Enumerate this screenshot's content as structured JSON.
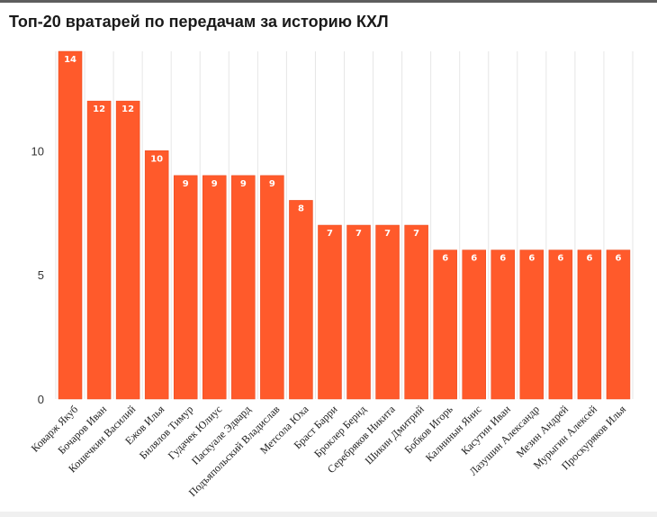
{
  "title": "Топ-20 вратарей по передачам за историю КХЛ",
  "colors": {
    "bar": "#ff5a2b",
    "bar_edge": "#e8461a",
    "grid": "#e6e6e6"
  },
  "chart_data": {
    "type": "bar",
    "title": "Топ-20 вратарей по передачам за историю КХЛ",
    "xlabel": "",
    "ylabel": "",
    "ylim": [
      0,
      14
    ],
    "yticks": [
      0,
      5,
      10
    ],
    "grid": true,
    "data_labels": true,
    "categories": [
      "Коварж Якуб",
      "Бочаров Иван",
      "Кошечкин Василий",
      "Ежов Илья",
      "Билялов Тимур",
      "Гудачек Юлиус",
      "Паскуале Эдвард",
      "Подъяпольский Владислав",
      "Метсола Юха",
      "Браст Барри",
      "Броклер Бернд",
      "Серебряков Никита",
      "Шикин Дмитрий",
      "Бобков Игорь",
      "Калнинын Янис",
      "Касутин Иван",
      "Лазушин Александр",
      "Мезин Андрей",
      "Мурыгин Алексей",
      "Проскуряков Илья"
    ],
    "values": [
      14,
      12,
      12,
      10,
      9,
      9,
      9,
      9,
      8,
      7,
      7,
      7,
      7,
      6,
      6,
      6,
      6,
      6,
      6,
      6
    ]
  }
}
